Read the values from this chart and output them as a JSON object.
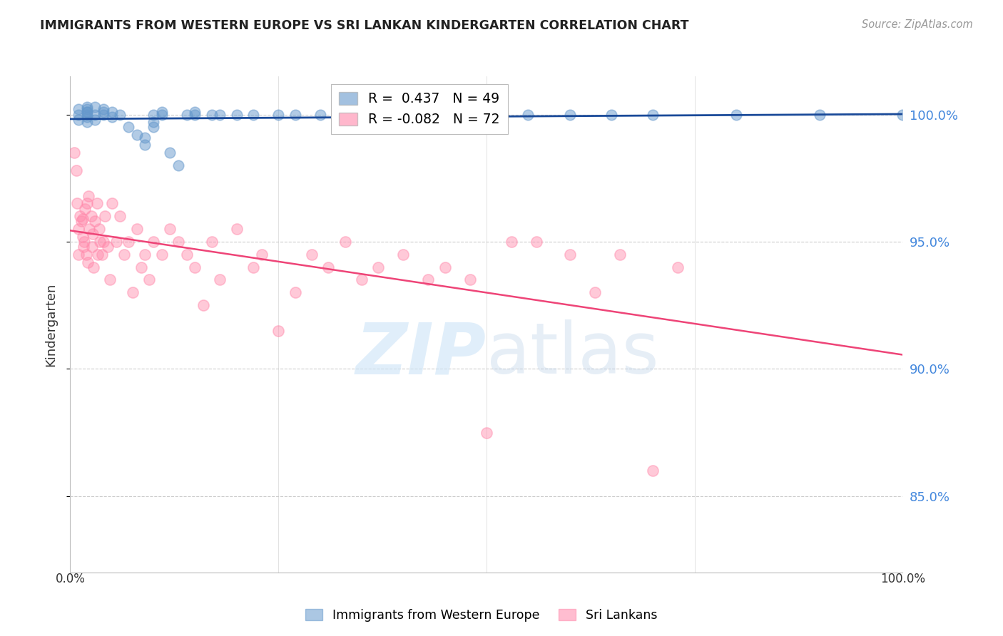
{
  "title": "IMMIGRANTS FROM WESTERN EUROPE VS SRI LANKAN KINDERGARTEN CORRELATION CHART",
  "source": "Source: ZipAtlas.com",
  "ylabel": "Kindergarten",
  "yticks": [
    100.0,
    95.0,
    90.0,
    85.0
  ],
  "xlim": [
    0.0,
    1.0
  ],
  "ylim": [
    82.0,
    101.5
  ],
  "blue_r": 0.437,
  "blue_n": 49,
  "pink_r": -0.082,
  "pink_n": 72,
  "blue_color": "#6699cc",
  "pink_color": "#ff88aa",
  "blue_line_color": "#1a4a99",
  "pink_line_color": "#ee4477",
  "blue_scatter_x": [
    0.01,
    0.01,
    0.01,
    0.02,
    0.02,
    0.02,
    0.02,
    0.02,
    0.02,
    0.02,
    0.03,
    0.03,
    0.03,
    0.04,
    0.04,
    0.04,
    0.05,
    0.05,
    0.06,
    0.07,
    0.08,
    0.09,
    0.09,
    0.1,
    0.1,
    0.1,
    0.11,
    0.11,
    0.12,
    0.13,
    0.14,
    0.15,
    0.15,
    0.17,
    0.18,
    0.2,
    0.22,
    0.25,
    0.27,
    0.3,
    0.35,
    0.5,
    0.55,
    0.6,
    0.65,
    0.7,
    0.8,
    0.9,
    1.0
  ],
  "blue_scatter_y": [
    100.2,
    99.8,
    100.0,
    100.3,
    100.1,
    99.9,
    100.0,
    100.2,
    99.7,
    100.1,
    100.0,
    100.3,
    99.8,
    100.1,
    100.2,
    100.0,
    100.1,
    99.9,
    100.0,
    99.5,
    99.2,
    99.1,
    98.8,
    100.0,
    99.7,
    99.5,
    100.0,
    100.1,
    98.5,
    98.0,
    100.0,
    100.0,
    100.1,
    100.0,
    100.0,
    100.0,
    100.0,
    100.0,
    100.0,
    100.0,
    100.0,
    100.0,
    100.0,
    100.0,
    100.0,
    100.0,
    100.0,
    100.0,
    100.0
  ],
  "pink_scatter_x": [
    0.005,
    0.007,
    0.008,
    0.01,
    0.01,
    0.012,
    0.013,
    0.015,
    0.015,
    0.016,
    0.017,
    0.018,
    0.019,
    0.02,
    0.021,
    0.022,
    0.023,
    0.025,
    0.026,
    0.027,
    0.028,
    0.03,
    0.032,
    0.033,
    0.035,
    0.036,
    0.038,
    0.04,
    0.042,
    0.045,
    0.048,
    0.05,
    0.055,
    0.06,
    0.065,
    0.07,
    0.075,
    0.08,
    0.085,
    0.09,
    0.095,
    0.1,
    0.11,
    0.12,
    0.13,
    0.14,
    0.15,
    0.16,
    0.17,
    0.18,
    0.2,
    0.22,
    0.23,
    0.25,
    0.27,
    0.29,
    0.31,
    0.33,
    0.35,
    0.37,
    0.4,
    0.43,
    0.45,
    0.48,
    0.5,
    0.53,
    0.56,
    0.6,
    0.63,
    0.66,
    0.7,
    0.73
  ],
  "pink_scatter_y": [
    98.5,
    97.8,
    96.5,
    95.5,
    94.5,
    96.0,
    95.8,
    95.2,
    95.9,
    94.8,
    95.0,
    96.3,
    94.5,
    96.5,
    94.2,
    96.8,
    95.5,
    96.0,
    94.8,
    95.3,
    94.0,
    95.8,
    96.5,
    94.5,
    95.5,
    95.0,
    94.5,
    95.0,
    96.0,
    94.8,
    93.5,
    96.5,
    95.0,
    96.0,
    94.5,
    95.0,
    93.0,
    95.5,
    94.0,
    94.5,
    93.5,
    95.0,
    94.5,
    95.5,
    95.0,
    94.5,
    94.0,
    92.5,
    95.0,
    93.5,
    95.5,
    94.0,
    94.5,
    91.5,
    93.0,
    94.5,
    94.0,
    95.0,
    93.5,
    94.0,
    94.5,
    93.5,
    94.0,
    93.5,
    87.5,
    95.0,
    95.0,
    94.5,
    93.0,
    94.5,
    86.0,
    94.0
  ]
}
